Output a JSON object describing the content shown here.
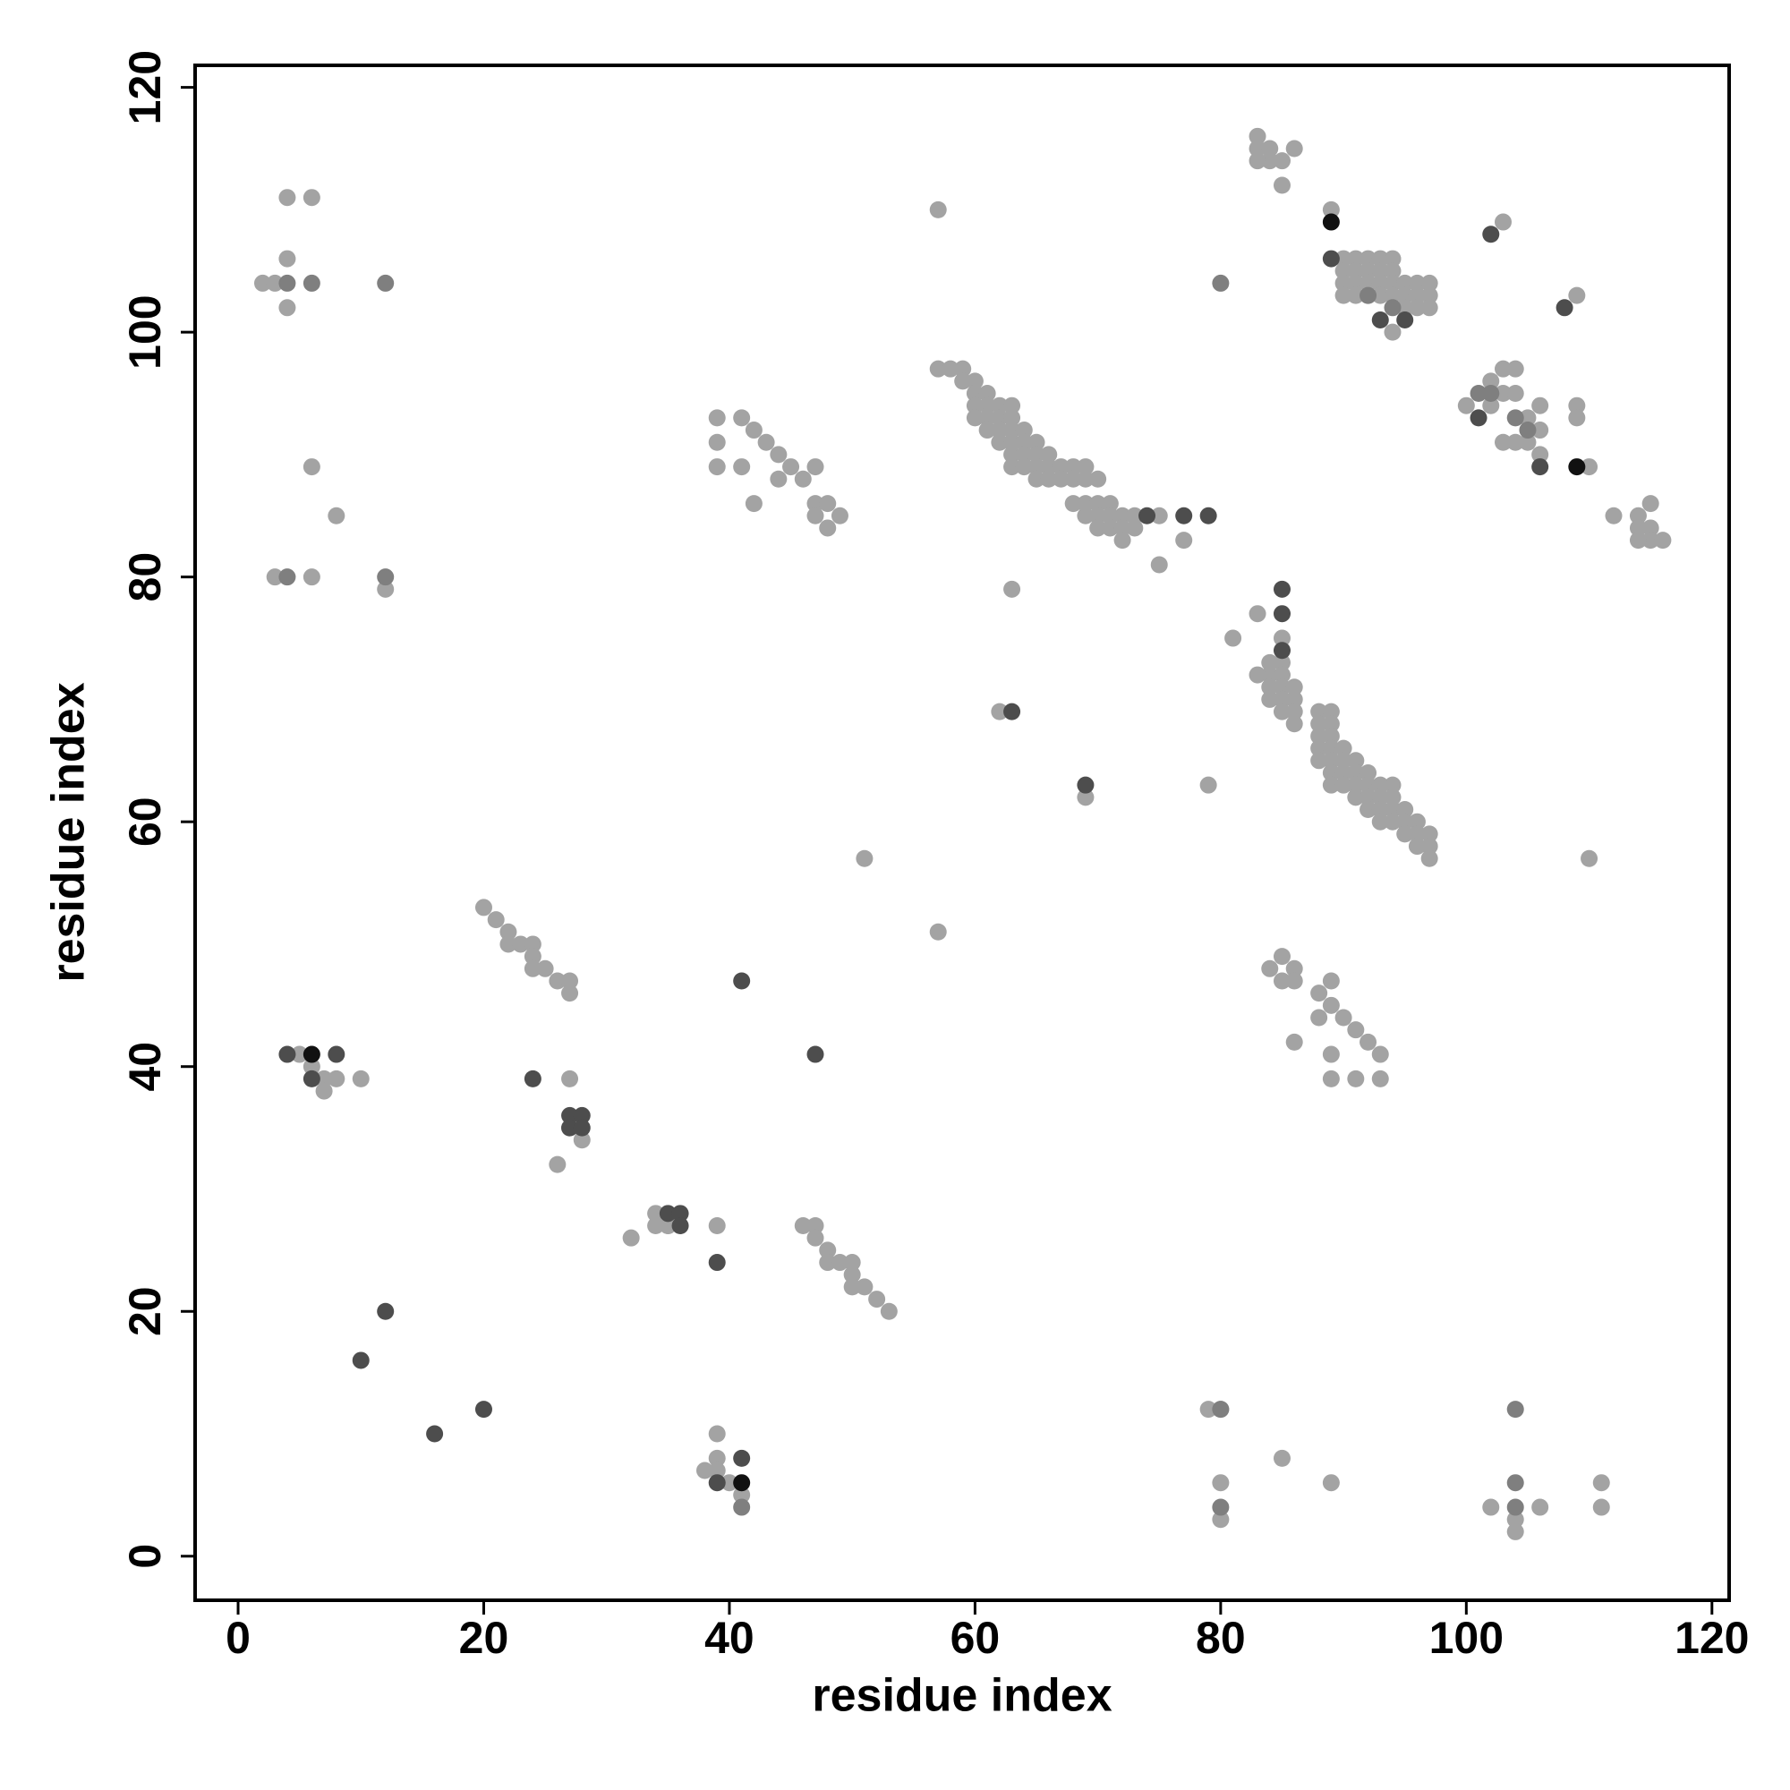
{
  "chart_data": {
    "type": "scatter",
    "xlabel": "residue index",
    "ylabel": "residue index",
    "xlim": [
      -3.5,
      121.4
    ],
    "ylim": [
      -3.6,
      121.8
    ],
    "xticks": [
      0,
      20,
      40,
      60,
      80,
      100,
      120
    ],
    "yticks": [
      0,
      20,
      40,
      60,
      80,
      100,
      120
    ],
    "series": [
      {
        "color": "#a3a3a3",
        "x": [
          4,
          6,
          4,
          2,
          3,
          4,
          6,
          8,
          3,
          6,
          12,
          57,
          83,
          83,
          84,
          84,
          83,
          85,
          86,
          85,
          89,
          103,
          109,
          90,
          91,
          92,
          93,
          94,
          90,
          91,
          92,
          93,
          94,
          90,
          91,
          92,
          93,
          94,
          90,
          91,
          92,
          93,
          94,
          95,
          96,
          97,
          95,
          96,
          97,
          95,
          96,
          97,
          94,
          100,
          102,
          102,
          103,
          103,
          103,
          104,
          104,
          104,
          105,
          105,
          106,
          106,
          106,
          109,
          109,
          110,
          112,
          114,
          114,
          115,
          115,
          115,
          116,
          114,
          57,
          58,
          59,
          59,
          60,
          60,
          61,
          61,
          60,
          62,
          63,
          60,
          61,
          62,
          63,
          61,
          62,
          63,
          64,
          62,
          63,
          64,
          65,
          63,
          64,
          65,
          66,
          63,
          64,
          65,
          66,
          67,
          68,
          69,
          65,
          66,
          67,
          68,
          69,
          70,
          68,
          69,
          70,
          71,
          69,
          70,
          71,
          72,
          73,
          75,
          70,
          71,
          72,
          73,
          72,
          77,
          75,
          39,
          41,
          42,
          43,
          39,
          44,
          45,
          39,
          41,
          47,
          44,
          46,
          42,
          47,
          48,
          47,
          49,
          48,
          63,
          62,
          69,
          79,
          51,
          57,
          110,
          83,
          81,
          85,
          85,
          84,
          84,
          83,
          85,
          84,
          85,
          86,
          84,
          85,
          86,
          85,
          86,
          86,
          88,
          89,
          88,
          89,
          88,
          89,
          88,
          89,
          90,
          88,
          89,
          90,
          91,
          89,
          90,
          91,
          92,
          89,
          90,
          91,
          92,
          93,
          94,
          91,
          92,
          93,
          94,
          92,
          93,
          94,
          95,
          93,
          94,
          95,
          96,
          95,
          96,
          97,
          96,
          97,
          97,
          85,
          84,
          86,
          85,
          86,
          88,
          89,
          89,
          88,
          90,
          91,
          92,
          86,
          93,
          89,
          89,
          91,
          93,
          20,
          21,
          22,
          22,
          23,
          24,
          24,
          24,
          25,
          26,
          27,
          27,
          5,
          6,
          7,
          8,
          10,
          7,
          27,
          27,
          28,
          26,
          34,
          35,
          34,
          35,
          32,
          39,
          46,
          47,
          47,
          48,
          48,
          49,
          50,
          50,
          50,
          51,
          52,
          53,
          39,
          39,
          38,
          39,
          40,
          41,
          79,
          80,
          80,
          80,
          85,
          89,
          102,
          104,
          104,
          106,
          111,
          111
        ],
        "values": [
          111,
          111,
          106,
          104,
          104,
          102,
          89,
          85,
          80,
          80,
          79,
          110,
          116,
          115,
          115,
          114,
          114,
          114,
          115,
          112,
          110,
          109,
          103,
          106,
          106,
          106,
          106,
          106,
          105,
          105,
          105,
          105,
          105,
          104,
          104,
          104,
          104,
          104,
          103,
          103,
          103,
          103,
          103,
          104,
          104,
          104,
          103,
          103,
          103,
          102,
          102,
          102,
          100,
          94,
          94,
          96,
          91,
          95,
          97,
          91,
          95,
          97,
          91,
          93,
          90,
          92,
          94,
          94,
          93,
          89,
          85,
          85,
          84,
          84,
          86,
          83,
          83,
          83,
          97,
          97,
          97,
          96,
          96,
          95,
          95,
          94,
          94,
          94,
          94,
          93,
          93,
          93,
          93,
          92,
          92,
          92,
          92,
          91,
          91,
          91,
          91,
          90,
          90,
          90,
          90,
          89,
          89,
          89,
          89,
          89,
          89,
          89,
          88,
          88,
          88,
          88,
          88,
          88,
          86,
          86,
          86,
          86,
          85,
          85,
          85,
          85,
          85,
          85,
          84,
          84,
          84,
          84,
          83,
          83,
          81,
          93,
          93,
          92,
          91,
          91,
          90,
          89,
          89,
          89,
          89,
          88,
          88,
          86,
          86,
          86,
          85,
          85,
          84,
          79,
          69,
          62,
          63,
          57,
          51,
          57,
          77,
          75,
          75,
          73,
          73,
          72,
          72,
          72,
          71,
          71,
          71,
          70,
          70,
          70,
          69,
          69,
          68,
          69,
          69,
          68,
          68,
          67,
          67,
          66,
          66,
          66,
          65,
          65,
          65,
          65,
          64,
          64,
          64,
          64,
          63,
          63,
          63,
          63,
          63,
          63,
          62,
          62,
          62,
          62,
          61,
          61,
          61,
          61,
          60,
          60,
          60,
          60,
          59,
          59,
          59,
          58,
          58,
          57,
          49,
          48,
          48,
          47,
          47,
          46,
          47,
          45,
          44,
          44,
          43,
          42,
          42,
          41,
          41,
          39,
          39,
          39,
          53,
          52,
          51,
          50,
          50,
          50,
          49,
          48,
          48,
          47,
          47,
          46,
          41,
          40,
          39,
          39,
          39,
          38,
          39,
          35,
          34,
          32,
          28,
          27,
          27,
          27,
          26,
          27,
          27,
          27,
          26,
          25,
          24,
          24,
          24,
          23,
          22,
          22,
          21,
          20,
          10,
          8,
          7,
          7,
          6,
          5,
          12,
          12,
          6,
          3,
          8,
          6,
          4,
          3,
          2,
          4,
          6,
          4
        ]
      },
      {
        "color": "#7f7f7f",
        "x": [
          4,
          6,
          12,
          4,
          12,
          80,
          92,
          94,
          101,
          102,
          104,
          105,
          80,
          104,
          80,
          104,
          104,
          41
        ],
        "values": [
          104,
          104,
          104,
          80,
          80,
          104,
          103,
          102,
          95,
          95,
          93,
          92,
          12,
          12,
          4,
          6,
          4,
          4
        ]
      },
      {
        "color": "#4d4d4d",
        "x": [
          89,
          102,
          108,
          93,
          95,
          101,
          106,
          74,
          77,
          79,
          63,
          69,
          85,
          85,
          85,
          4,
          8,
          6,
          24,
          27,
          28,
          27,
          28,
          41,
          47,
          35,
          36,
          36,
          39,
          12,
          10,
          20,
          16,
          39,
          41
        ],
        "values": [
          106,
          108,
          102,
          101,
          101,
          93,
          89,
          85,
          85,
          85,
          69,
          63,
          79,
          77,
          74,
          41,
          41,
          39,
          39,
          36,
          36,
          35,
          35,
          47,
          41,
          28,
          28,
          27,
          24,
          20,
          16,
          12,
          10,
          6,
          8
        ]
      },
      {
        "color": "#111111",
        "x": [
          89,
          109,
          6,
          41
        ],
        "values": [
          109,
          89,
          41,
          6
        ]
      }
    ]
  }
}
